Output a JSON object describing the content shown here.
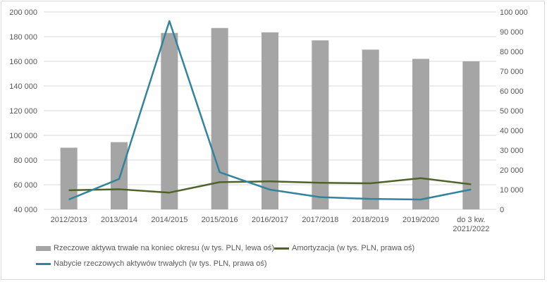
{
  "chart_data": {
    "type": "bar",
    "categories": [
      "2012/2013",
      "2013/2014",
      "2014/2015",
      "2015/2016",
      "2016/2017",
      "2017/2018",
      "2018/2019",
      "2019/2020",
      "do 3 kw.\n2021/2022"
    ],
    "y_left": {
      "min": 40000,
      "max": 200000,
      "ticks": [
        "40 000",
        "60 000",
        "80 000",
        "100 000",
        "120 000",
        "140 000",
        "160 000",
        "180 000",
        "200 000"
      ]
    },
    "y_right": {
      "min": 0,
      "max": 100000,
      "ticks": [
        "0",
        "10 000",
        "20 000",
        "30 000",
        "40 000",
        "50 000",
        "60 000",
        "70 000",
        "80 000",
        "90 000",
        "100 000"
      ]
    },
    "grid": true,
    "legend_position": "bottom",
    "series": [
      {
        "name": "Rzeczowe aktywa trwałe na koniec okresu (w tys. PLN, lewa oś)",
        "type": "bar",
        "axis": "left",
        "color": "#a5a5a5",
        "values": [
          90000,
          94500,
          183000,
          187000,
          183500,
          177000,
          169500,
          162000,
          160000
        ]
      },
      {
        "name": "Amortyzacja (w tys. PLN, prawa oś)",
        "type": "line",
        "axis": "right",
        "color": "#4f6228",
        "values": [
          9700,
          10200,
          8500,
          13800,
          14200,
          13500,
          13200,
          15800,
          12700
        ]
      },
      {
        "name": "Nabycie rzeczowych aktywów trwałych (w tys. PLN, prawa oś)",
        "type": "line",
        "axis": "right",
        "color": "#31849b",
        "values": [
          5000,
          15400,
          95400,
          18800,
          10000,
          6200,
          5300,
          5000,
          10100
        ]
      }
    ]
  }
}
